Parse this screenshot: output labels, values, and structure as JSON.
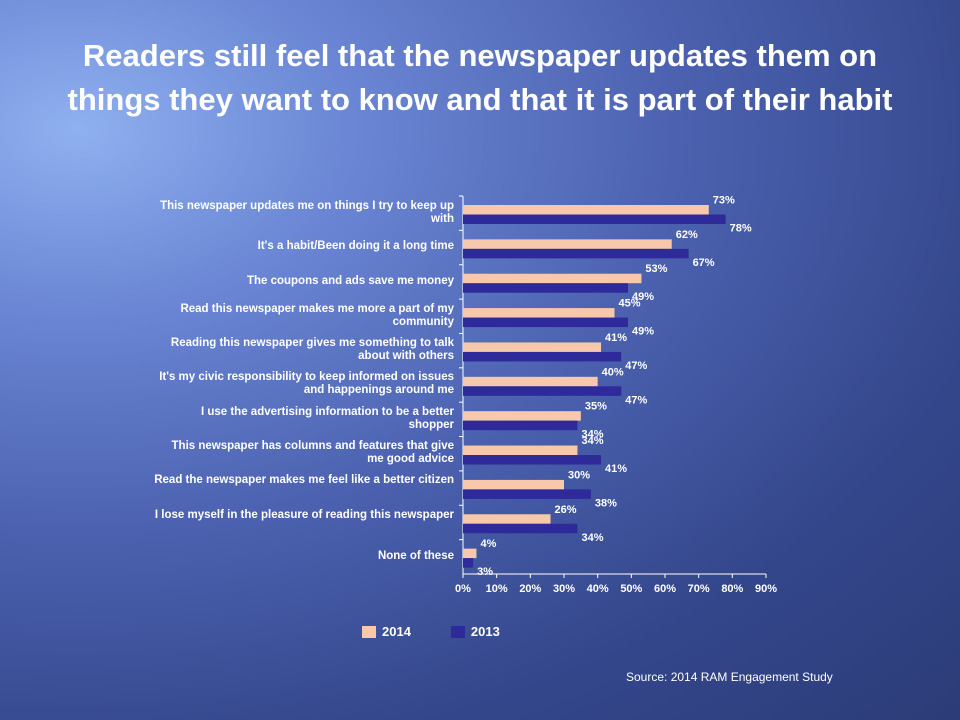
{
  "title": "Readers still feel that the newspaper updates them on things they want to know and that it is part of their habit",
  "source": "Source:  2014  RAM Engagement Study",
  "colors": {
    "series2014": "#f7c9aa",
    "series2013": "#2e2a9a"
  },
  "chart_data": {
    "type": "bar",
    "orientation": "horizontal",
    "categories": [
      "This newspaper updates me on things I try to keep up with",
      "It's a habit/Been doing it a long time",
      "The coupons and ads save me money",
      "Read this newspaper makes me more a part of my community",
      "Reading this newspaper gives me something to talk about with others",
      "It's my civic responsibility to keep informed on issues and happenings around me",
      "I use the advertising information to be a better shopper",
      "This newspaper has columns and features that give me good advice",
      "Read the newspaper makes me feel like a better citizen",
      "I lose myself in the pleasure of reading this newspaper",
      "None of these"
    ],
    "series": [
      {
        "name": "2014",
        "values": [
          73,
          62,
          53,
          45,
          41,
          40,
          35,
          34,
          30,
          26,
          4
        ],
        "labels": [
          "73%",
          "62%",
          "53%",
          "45%",
          "41%",
          "40%",
          "35%",
          "34%",
          "30%",
          "26%",
          "4%"
        ]
      },
      {
        "name": "2013",
        "values": [
          78,
          67,
          49,
          49,
          47,
          47,
          34,
          41,
          38,
          34,
          3
        ],
        "labels": [
          "78%",
          "67%",
          "49%",
          "49%",
          "47%",
          "47%",
          "34%",
          "41%",
          "38%",
          "34%",
          "3%"
        ]
      }
    ],
    "xlim": [
      0,
      90
    ],
    "xticks": [
      "0%",
      "10%",
      "20%",
      "30%",
      "40%",
      "50%",
      "60%",
      "70%",
      "80%",
      "90%"
    ],
    "legend_position": "bottom",
    "grid": false
  }
}
